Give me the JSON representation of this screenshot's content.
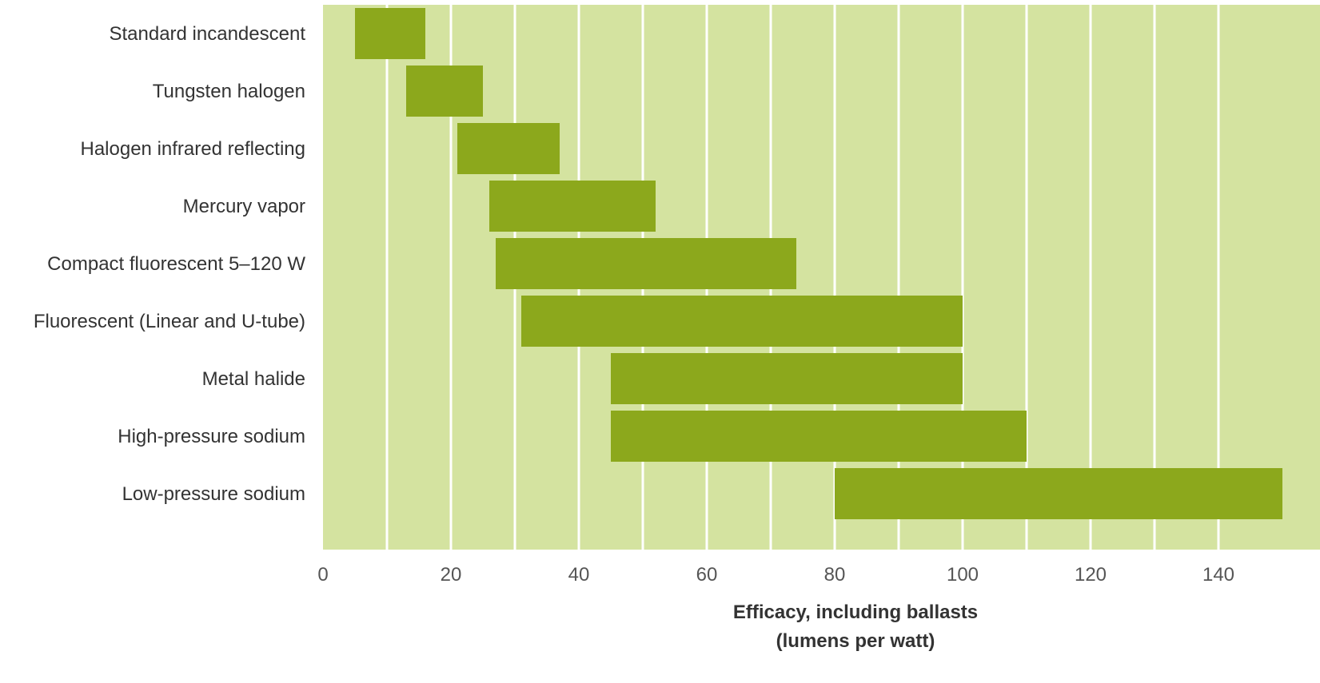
{
  "chart_data": {
    "type": "bar",
    "orientation": "horizontal",
    "range_bars": true,
    "categories": [
      "Standard incandescent",
      "Tungsten halogen",
      "Halogen infrared reflecting",
      "Mercury vapor",
      "Compact fluorescent 5–120 W",
      "Fluorescent (Linear and U-tube)",
      "Metal halide",
      "High-pressure sodium",
      "Low-pressure sodium"
    ],
    "ranges": [
      [
        5,
        16
      ],
      [
        13,
        25
      ],
      [
        21,
        37
      ],
      [
        26,
        52
      ],
      [
        27,
        74
      ],
      [
        31,
        100
      ],
      [
        45,
        100
      ],
      [
        45,
        110
      ],
      [
        80,
        150
      ]
    ],
    "xlim": [
      0,
      150
    ],
    "x_ticks": [
      0,
      20,
      40,
      60,
      80,
      100,
      120,
      140
    ],
    "x_tick_labels": [
      "0",
      "20",
      "40",
      "60",
      "80",
      "100",
      "120",
      "140"
    ],
    "gridline_step": 10,
    "xlabel_line1": "Efficacy, including ballasts",
    "xlabel_line2": "(lumens per watt)",
    "grid": true,
    "legend": "none",
    "colors": {
      "plot_background": "#d4e3a0",
      "bar": "#8ca81c",
      "gridline": "#ffffff"
    }
  }
}
